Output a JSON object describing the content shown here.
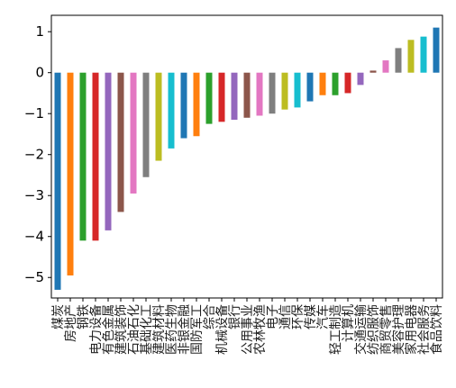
{
  "chart_data": {
    "type": "bar",
    "title": "",
    "xlabel": "",
    "ylabel": "",
    "ylim": [
      -5.5,
      1.4
    ],
    "yticks": [
      1,
      0,
      -1,
      -2,
      -3,
      -4,
      -5
    ],
    "ytick_labels": [
      "1",
      "0",
      "−1",
      "−2",
      "−3",
      "−4",
      "−5"
    ],
    "grid": false,
    "legend": "none",
    "categories": [
      "煤炭",
      "房地产",
      "钢铁",
      "电力设备",
      "有色金属",
      "建筑装饰",
      "石油石化",
      "基础化工",
      "建筑材料",
      "医药生物",
      "非银金融",
      "国防军工",
      "综合",
      "机械设备",
      "银行",
      "公用事业",
      "农林牧渔",
      "电子",
      "通信",
      "环保",
      "传媒",
      "汽车",
      "轻工制造",
      "计算机",
      "交通运输",
      "纺织服饰",
      "商贸零售",
      "美容护理",
      "家用电器",
      "社会服务",
      "食品饮料"
    ],
    "values": [
      -5.3,
      -4.95,
      -4.1,
      -4.1,
      -3.85,
      -3.4,
      -2.95,
      -2.55,
      -2.15,
      -1.85,
      -1.6,
      -1.55,
      -1.25,
      -1.2,
      -1.15,
      -1.1,
      -1.05,
      -1.0,
      -0.9,
      -0.85,
      -0.7,
      -0.55,
      -0.55,
      -0.5,
      -0.3,
      0.05,
      0.3,
      0.6,
      0.8,
      0.88,
      1.1
    ],
    "colors": [
      "#1f77b4",
      "#ff7f0e",
      "#2ca02c",
      "#d62728",
      "#9467bd",
      "#8c564b",
      "#e377c2",
      "#7f7f7f",
      "#bcbd22",
      "#17becf"
    ]
  }
}
